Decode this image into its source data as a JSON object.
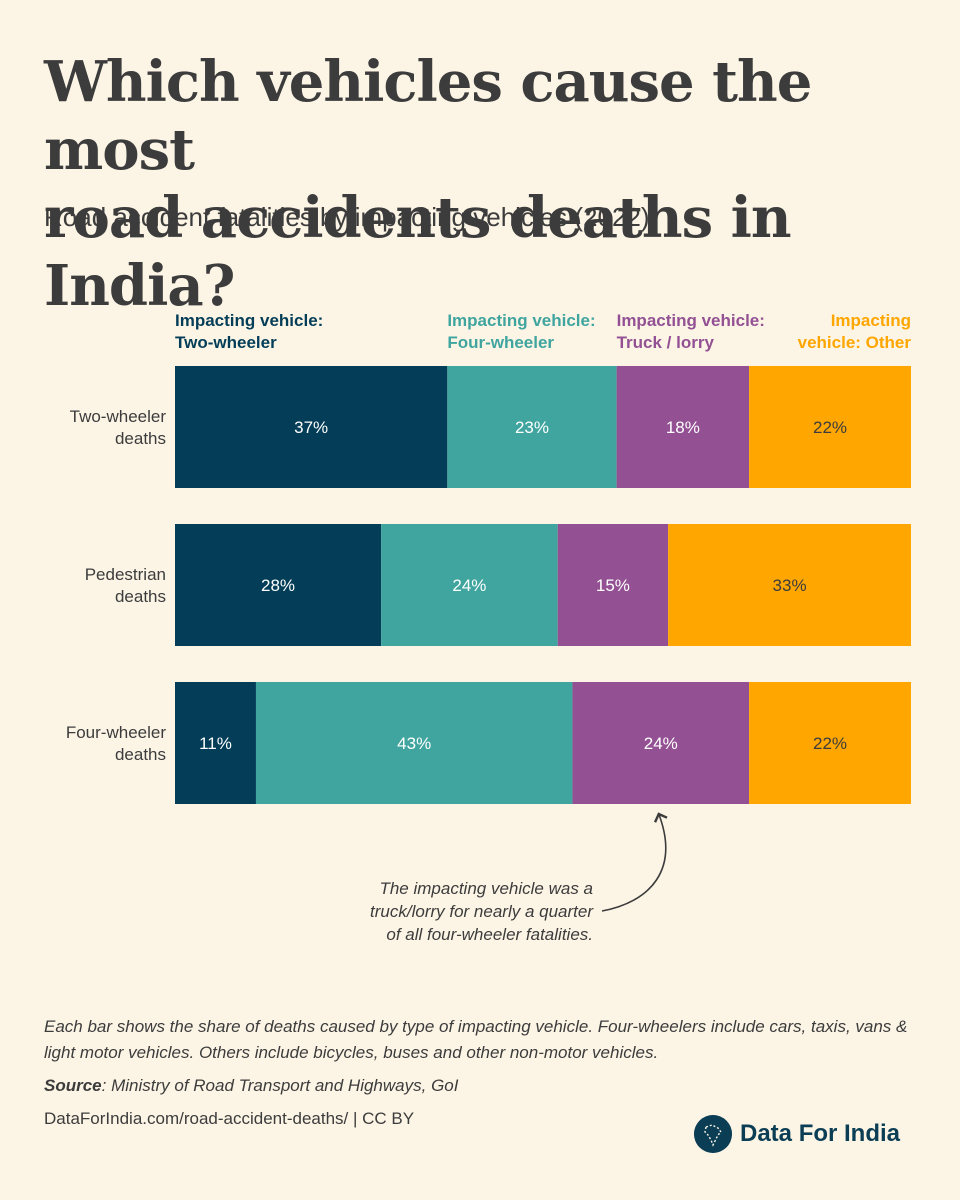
{
  "title_lines": [
    "Which vehicles cause the most",
    "road accidents deaths in India?"
  ],
  "subtitle": "Road accident fatalities by impacting vehicles (2022)",
  "colors": {
    "two_wheeler": "#033d57",
    "four_wheeler": "#40a59f",
    "truck": "#935194",
    "other": "#ffa600",
    "background": "#fcf5e6",
    "text": "#3c3c3c"
  },
  "chart_data": {
    "type": "bar",
    "orientation": "horizontal",
    "stacked": true,
    "title": "Which vehicles cause the most road accidents deaths in India?",
    "categories": [
      [
        "Two-wheeler",
        "deaths"
      ],
      [
        "Pedestrian",
        "deaths"
      ],
      [
        "Four-wheeler",
        "deaths"
      ]
    ],
    "series": [
      {
        "name": "Impacting vehicle: Two-wheeler",
        "legend_lines": [
          "Impacting vehicle:",
          "Two-wheeler"
        ],
        "color": "#033d57",
        "label_color": "#ffffff",
        "values": [
          37,
          28,
          11
        ]
      },
      {
        "name": "Impacting vehicle: Four-wheeler",
        "legend_lines": [
          "Impacting vehicle:",
          "Four-wheeler"
        ],
        "color": "#40a59f",
        "label_color": "#ffffff",
        "values": [
          23,
          24,
          43
        ]
      },
      {
        "name": "Impacting vehicle: Truck / lorry",
        "legend_lines": [
          "Impacting vehicle:",
          "Truck / lorry"
        ],
        "color": "#935194",
        "label_color": "#ffffff",
        "values": [
          18,
          15,
          24
        ]
      },
      {
        "name": "Impacting vehicle: Other",
        "legend_lines": [
          "Impacting",
          "vehicle: Other"
        ],
        "color": "#ffa600",
        "label_color": "#3c3c3c",
        "values": [
          22,
          33,
          22
        ]
      }
    ],
    "value_suffix": "%",
    "xlim": [
      0,
      100
    ],
    "legend_position": "top",
    "annotation": {
      "lines": [
        "The impacting vehicle was a",
        "truck/lorry for nearly a quarter",
        "of all four-wheeler fatalities."
      ],
      "target_category": 2,
      "target_series": 2
    }
  },
  "footer": {
    "note": "Each bar shows the share of deaths caused by type of impacting vehicle. Four-wheelers include cars, taxis, vans & light motor vehicles. Others include bicycles, buses and other non-motor vehicles.",
    "source_label": "Source",
    "source_text": ": Ministry of Road Transport and Highways, GoI",
    "credit": "DataForIndia.com/road-accident-deaths/  |  CC BY"
  },
  "logo": {
    "icon": "india-map-icon",
    "text": "Data For India"
  }
}
